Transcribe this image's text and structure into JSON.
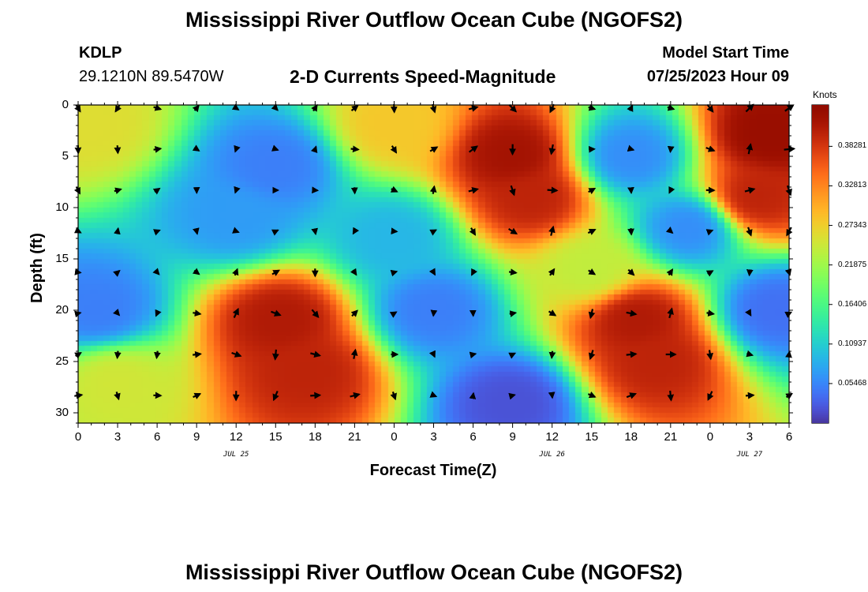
{
  "title": "Mississippi River Outflow Ocean Cube (NGOFS2)",
  "title_repeat": "Mississippi River Outflow Ocean Cube (NGOFS2)",
  "station": {
    "id": "KDLP",
    "coords": "29.1210N  89.5470W"
  },
  "subtitle": "2-D Currents Speed-Magnitude",
  "model": {
    "label": "Model Start Time",
    "value": "07/25/2023 Hour 09"
  },
  "chart_data": {
    "type": "heatmap",
    "title": "2-D Currents Speed-Magnitude",
    "xlabel": "Forecast Time(Z)",
    "ylabel": "Depth (ft)",
    "x_tick_labels": [
      "0",
      "3",
      "6",
      "9",
      "12",
      "15",
      "18",
      "21",
      "0",
      "3",
      "6",
      "9",
      "12",
      "15",
      "18",
      "21",
      "0",
      "3",
      "6"
    ],
    "x_hours": [
      0,
      3,
      6,
      9,
      12,
      15,
      18,
      21,
      24,
      27,
      30,
      33,
      36,
      39,
      42,
      45,
      48,
      51,
      54
    ],
    "x_range_hours": [
      0,
      54
    ],
    "day_labels": [
      {
        "text": "JUL 25",
        "hour": 12
      },
      {
        "text": "JUL 26",
        "hour": 36
      },
      {
        "text": "JUL 27",
        "hour": 51
      }
    ],
    "y_ticks": [
      0,
      5,
      10,
      15,
      20,
      25,
      30
    ],
    "y_range_ft": [
      0,
      31
    ],
    "y_inverted": true,
    "colorbar": {
      "label": "Knots",
      "range": [
        0.0,
        0.44
      ],
      "ticks": [
        "0.38281",
        "0.32813",
        "0.27343",
        "0.21875",
        "0.16406",
        "0.10937",
        "0.05468"
      ],
      "tick_values": [
        0.38281,
        0.32813,
        0.27343,
        0.21875,
        0.16406,
        0.10937,
        0.05468
      ]
    },
    "arrow_hours": [
      0,
      3,
      6,
      9,
      12,
      15,
      18,
      21,
      24,
      27,
      30,
      33,
      36,
      39,
      42,
      45,
      48,
      51,
      54
    ],
    "arrow_depths_ft": [
      0,
      4,
      8,
      12,
      16,
      20,
      24,
      28
    ],
    "speed_features": [
      {
        "hour": 15.5,
        "depth": 21,
        "speed": 0.41
      },
      {
        "hour": 17.5,
        "depth": 26,
        "speed": 0.4
      },
      {
        "hour": 33.0,
        "depth": 5,
        "speed": 0.42
      },
      {
        "hour": 34.5,
        "depth": 9,
        "speed": 0.4
      },
      {
        "hour": 42.5,
        "depth": 21,
        "speed": 0.41
      },
      {
        "hour": 44.0,
        "depth": 25,
        "speed": 0.4
      },
      {
        "hour": 52.5,
        "depth": 3,
        "speed": 0.43
      },
      {
        "hour": 51.5,
        "depth": 9,
        "speed": 0.4
      },
      {
        "hour": 1.5,
        "depth": 20,
        "speed": 0.05
      },
      {
        "hour": 15.0,
        "depth": 6,
        "speed": 0.05
      },
      {
        "hour": 12.0,
        "depth": 11,
        "speed": 0.07
      },
      {
        "hour": 24.0,
        "depth": 13,
        "speed": 0.09
      },
      {
        "hour": 27.0,
        "depth": 20,
        "speed": 0.05
      },
      {
        "hour": 33.0,
        "depth": 29,
        "speed": 0.02
      },
      {
        "hour": 42.0,
        "depth": 5,
        "speed": 0.06
      },
      {
        "hour": 46.5,
        "depth": 12,
        "speed": 0.06
      },
      {
        "hour": 53.0,
        "depth": 20,
        "speed": 0.04
      },
      {
        "hour": 3.0,
        "depth": 27,
        "speed": 0.25
      },
      {
        "hour": 1.0,
        "depth": 2,
        "speed": 0.26
      },
      {
        "hour": 24.0,
        "depth": 2,
        "speed": 0.28
      },
      {
        "hour": 39.0,
        "depth": 16,
        "speed": 0.24
      }
    ]
  }
}
